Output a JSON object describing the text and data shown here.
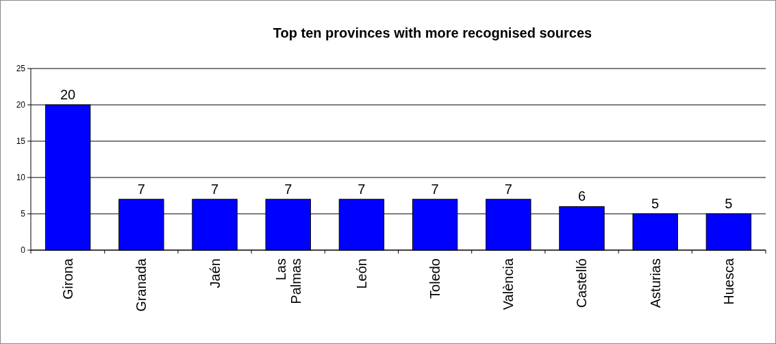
{
  "chart_data": {
    "type": "bar",
    "title": "Top ten provinces with more recognised sources",
    "categories": [
      "Girona",
      "Granada",
      "Jaén",
      "Las Palmas",
      "León",
      "Toledo",
      "València",
      "Castelló",
      "Asturias",
      "Huesca"
    ],
    "values": [
      20,
      7,
      7,
      7,
      7,
      7,
      7,
      6,
      5,
      5
    ],
    "color": "#0000ff",
    "ylim": [
      0,
      25
    ],
    "yticks": [
      0,
      5,
      10,
      15,
      20,
      25
    ],
    "grid": "y",
    "data_labels": true
  }
}
